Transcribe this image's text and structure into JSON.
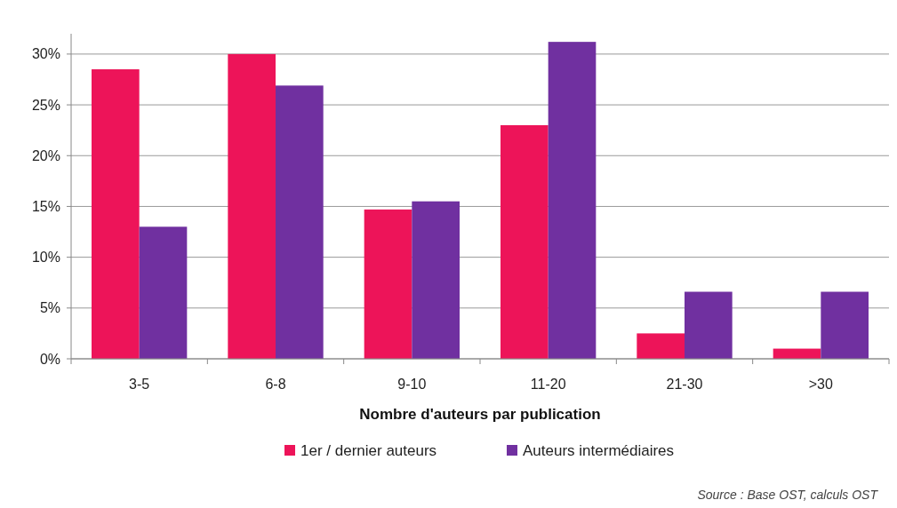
{
  "chart_data": {
    "type": "bar",
    "xlabel": "Nombre d'auteurs par publication",
    "categories": [
      "3-5",
      "6-8",
      "9-10",
      "11-20",
      "21-30",
      ">30"
    ],
    "series": [
      {
        "name": "1er / dernier auteurs",
        "color": "#ed1459",
        "values": [
          28.5,
          30.0,
          14.7,
          23.0,
          2.5,
          1.0
        ]
      },
      {
        "name": "Auteurs intermédiaires",
        "color": "#7030a0",
        "values": [
          13.0,
          26.9,
          15.5,
          31.2,
          6.6,
          6.6
        ]
      }
    ],
    "ylim": [
      0,
      32
    ],
    "yticks": [
      {
        "value": 0,
        "label": "0%"
      },
      {
        "value": 5,
        "label": "5%"
      },
      {
        "value": 10,
        "label": "10%"
      },
      {
        "value": 15,
        "label": "15%"
      },
      {
        "value": 20,
        "label": "20%"
      },
      {
        "value": 25,
        "label": "25%"
      },
      {
        "value": 30,
        "label": "30%"
      }
    ],
    "grid": "y",
    "legend": "bottom",
    "annotations": [
      "Source : Base OST, calculs OST"
    ]
  }
}
